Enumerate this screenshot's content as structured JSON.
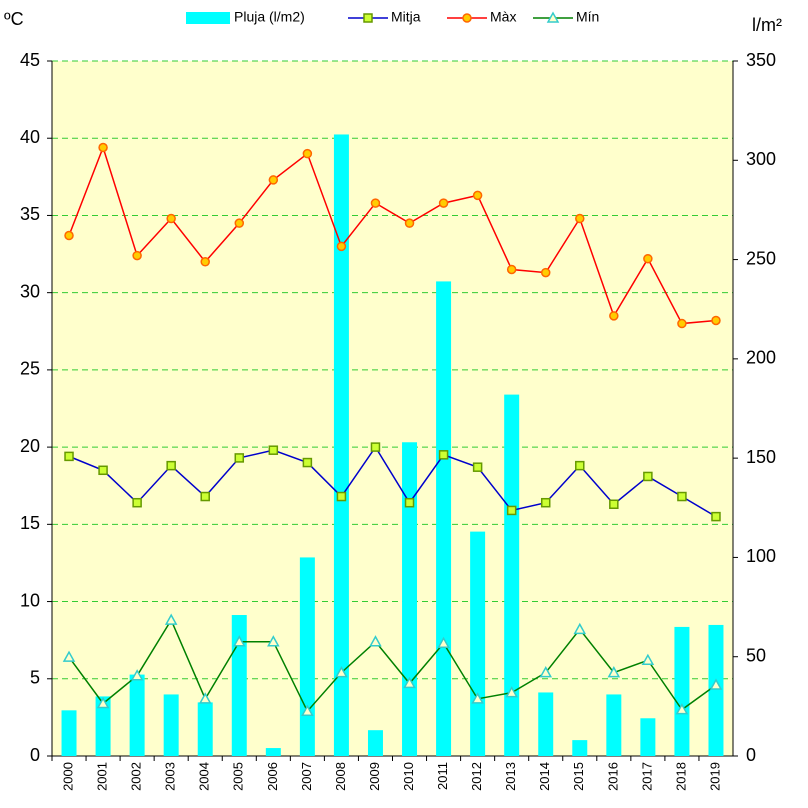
{
  "chart_data": {
    "type": "bar_line",
    "ylabel": "ºC",
    "y2label": "l/m²",
    "categories": [
      "2000",
      "2001",
      "2002",
      "2003",
      "2004",
      "2005",
      "2006",
      "2007",
      "2008",
      "2009",
      "2010",
      "2011",
      "2012",
      "2013",
      "2014",
      "2015",
      "2016",
      "2017",
      "2018",
      "2019"
    ],
    "series": [
      {
        "name": "Pluja (l/m2)",
        "kind": "bar",
        "axis": "y2",
        "color": "#00ffff",
        "values": [
          23,
          30,
          41,
          31,
          27,
          71,
          4,
          100,
          313,
          13,
          158,
          239,
          113,
          182,
          32,
          8,
          31,
          19,
          65,
          66
        ]
      },
      {
        "name": "Mitja",
        "kind": "line",
        "marker": "square",
        "color": "#0000cc",
        "marker_color": "#ccff33",
        "marker_stroke": "#669900",
        "values": [
          19.4,
          18.5,
          16.4,
          18.8,
          16.8,
          19.3,
          19.8,
          19.0,
          16.8,
          20.0,
          16.4,
          19.5,
          18.7,
          15.9,
          16.4,
          18.8,
          16.3,
          18.1,
          16.8,
          15.5
        ]
      },
      {
        "name": "Màx",
        "kind": "line",
        "marker": "circle",
        "color": "#ff0000",
        "marker_color": "#ffcc00",
        "marker_stroke": "#ff6600",
        "values": [
          33.7,
          39.4,
          32.4,
          34.8,
          32.0,
          34.5,
          37.3,
          39.0,
          33.0,
          35.8,
          34.5,
          35.8,
          36.3,
          31.5,
          31.3,
          34.8,
          28.5,
          32.2,
          28.0,
          28.2
        ]
      },
      {
        "name": "Mín",
        "kind": "line",
        "marker": "triangle",
        "color": "#008000",
        "marker_color": "#ffffcc",
        "marker_stroke": "#33cccc",
        "values": [
          6.4,
          3.4,
          5.2,
          8.8,
          3.7,
          7.4,
          7.4,
          2.9,
          5.4,
          7.4,
          4.7,
          7.3,
          3.7,
          4.1,
          5.4,
          8.2,
          5.4,
          6.2,
          3.0,
          4.6
        ]
      }
    ],
    "ylim": [
      0,
      45
    ],
    "yticks": [
      0,
      5,
      10,
      15,
      20,
      25,
      30,
      35,
      40,
      45
    ],
    "y2lim": [
      0,
      350
    ],
    "y2ticks": [
      0,
      50,
      100,
      150,
      200,
      250,
      300,
      350
    ],
    "grid": true,
    "legend": "top"
  }
}
